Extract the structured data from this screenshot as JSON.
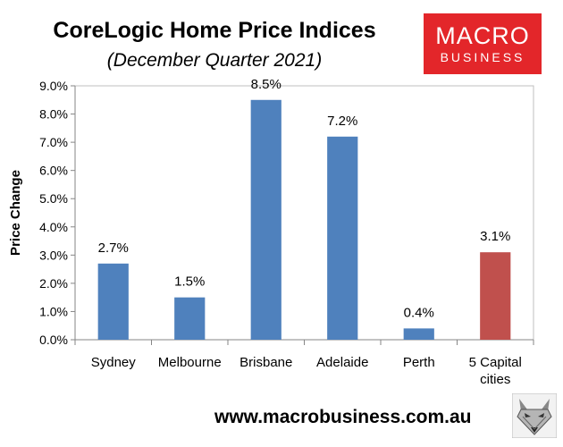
{
  "brand": {
    "logo_line1": "MACRO",
    "logo_line2": "BUSINESS",
    "website": "www.macrobusiness.com.au"
  },
  "colors": {
    "bar_default": "#4f81bd",
    "bar_highlight": "#c0504d",
    "logo_red": "#e3262a"
  },
  "icons": {
    "mascot": "fox-head-icon"
  },
  "chart_data": {
    "type": "bar",
    "title": "CoreLogic Home Price Indices",
    "subtitle": "(December Quarter 2021)",
    "ylabel": "Price Change",
    "xlabel": "",
    "ylim": [
      0,
      9
    ],
    "yticks": [
      "0.0%",
      "1.0%",
      "2.0%",
      "3.0%",
      "4.0%",
      "5.0%",
      "6.0%",
      "7.0%",
      "8.0%",
      "9.0%"
    ],
    "categories": [
      [
        "Sydney"
      ],
      [
        "Melbourne"
      ],
      [
        "Brisbane"
      ],
      [
        "Adelaide"
      ],
      [
        "Perth"
      ],
      [
        "5 Capital",
        "cities"
      ]
    ],
    "values": [
      2.7,
      1.5,
      8.5,
      7.2,
      0.4,
      3.1
    ],
    "data_labels": [
      "2.7%",
      "1.5%",
      "8.5%",
      "7.2%",
      "0.4%",
      "3.1%"
    ],
    "highlight_index": 5,
    "grid": false,
    "legend": "none"
  }
}
